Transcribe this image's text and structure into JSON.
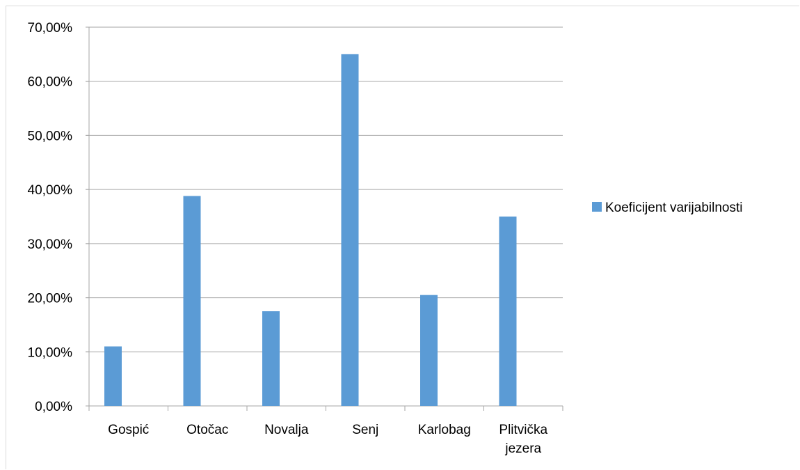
{
  "chart_data": {
    "type": "bar",
    "title": "",
    "xlabel": "",
    "ylabel": "",
    "categories": [
      "Gospić",
      "Otočac",
      "Novalja",
      "Senj",
      "Karlobag",
      "Plitvička jezera"
    ],
    "category_lines": [
      [
        "Gospić"
      ],
      [
        "Otočac"
      ],
      [
        "Novalja"
      ],
      [
        "Senj"
      ],
      [
        "Karlobag"
      ],
      [
        "Plitvička",
        "jezera"
      ]
    ],
    "series": [
      {
        "name": "Koeficijent varijabilnosti",
        "values": [
          11.0,
          38.8,
          17.5,
          65.0,
          20.5,
          35.0
        ]
      }
    ],
    "ylim": [
      0,
      70
    ],
    "y_ticks": [
      0,
      10,
      20,
      30,
      40,
      50,
      60,
      70
    ],
    "y_tick_labels": [
      "0,00%",
      "10,00%",
      "20,00%",
      "30,00%",
      "40,00%",
      "50,00%",
      "60,00%",
      "70,00%"
    ],
    "grid": true,
    "legend_position": "right",
    "colors": {
      "bar": "#5b9bd5",
      "grid": "#a6a6a6",
      "axis": "#a6a6a6",
      "frame": "#d9d9d9"
    }
  }
}
